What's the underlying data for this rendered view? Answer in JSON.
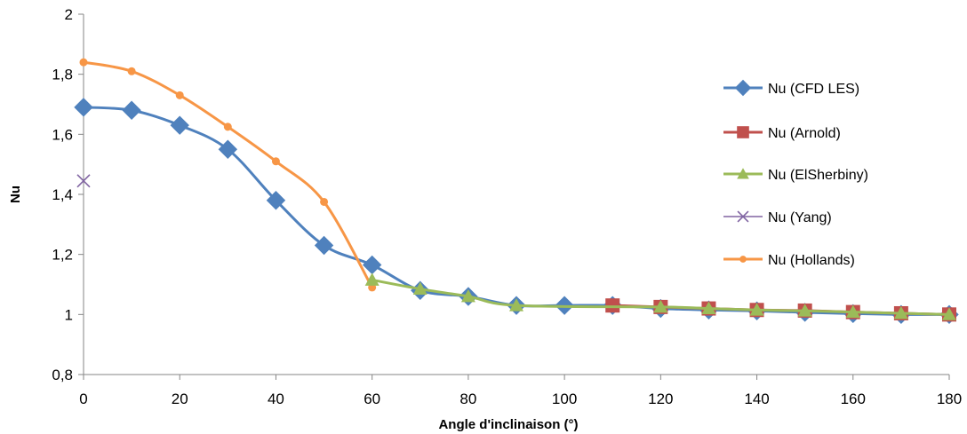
{
  "chart_data": {
    "type": "line",
    "title": "",
    "xlabel": "Angle d'inclinaison  (°)",
    "ylabel": "Nu",
    "xlim": [
      0,
      180
    ],
    "ylim": [
      0.8,
      2
    ],
    "xticks": [
      0,
      20,
      40,
      60,
      80,
      100,
      120,
      140,
      160,
      180
    ],
    "xtick_labels": [
      "0",
      "20",
      "40",
      "60",
      "80",
      "100",
      "120",
      "140",
      "160",
      "180"
    ],
    "yticks": [
      0.8,
      1,
      1.2,
      1.4,
      1.6,
      1.8,
      2
    ],
    "ytick_labels": [
      "0,8",
      "1",
      "1,2",
      "1,4",
      "1,6",
      "1,8",
      "2"
    ],
    "grid": false,
    "legend_position": "right",
    "series": [
      {
        "name": "Nu (CFD LES)",
        "color": "#4F81BD",
        "marker": "diamond",
        "points": [
          [
            0,
            1.69
          ],
          [
            10,
            1.68
          ],
          [
            20,
            1.63
          ],
          [
            30,
            1.55
          ],
          [
            40,
            1.38
          ],
          [
            50,
            1.23
          ],
          [
            60,
            1.165
          ],
          [
            70,
            1.08
          ],
          [
            80,
            1.06
          ],
          [
            90,
            1.03
          ],
          [
            100,
            1.03
          ],
          [
            110,
            1.03
          ],
          [
            120,
            1.02
          ],
          [
            130,
            1.015
          ],
          [
            140,
            1.012
          ],
          [
            150,
            1.007
          ],
          [
            160,
            1.003
          ],
          [
            170,
            1.0
          ],
          [
            180,
            1.0
          ]
        ]
      },
      {
        "name": "Nu (Arnold)",
        "color": "#C0504D",
        "marker": "square",
        "points": [
          [
            110,
            1.03
          ],
          [
            120,
            1.025
          ],
          [
            130,
            1.02
          ],
          [
            140,
            1.015
          ],
          [
            150,
            1.013
          ],
          [
            160,
            1.008
          ],
          [
            170,
            1.004
          ],
          [
            180,
            1.0
          ]
        ]
      },
      {
        "name": "Nu (ElSherbiny)",
        "color": "#9BBB59",
        "marker": "triangle",
        "points": [
          [
            60,
            1.115
          ],
          [
            70,
            1.085
          ],
          [
            80,
            1.06
          ],
          [
            90,
            1.03
          ],
          [
            120,
            1.025
          ],
          [
            130,
            1.02
          ],
          [
            140,
            1.015
          ],
          [
            150,
            1.012
          ],
          [
            160,
            1.008
          ],
          [
            170,
            1.004
          ],
          [
            180,
            1.0
          ]
        ]
      },
      {
        "name": "Nu (Yang)",
        "color": "#8064A2",
        "marker": "x",
        "points": [
          [
            0,
            1.445
          ]
        ]
      },
      {
        "name": "Nu (Hollands)",
        "color": "#F79646",
        "marker": "circle",
        "points": [
          [
            0,
            1.84
          ],
          [
            10,
            1.81
          ],
          [
            20,
            1.73
          ],
          [
            30,
            1.625
          ],
          [
            40,
            1.51
          ],
          [
            50,
            1.375
          ],
          [
            60,
            1.09
          ]
        ]
      }
    ]
  }
}
